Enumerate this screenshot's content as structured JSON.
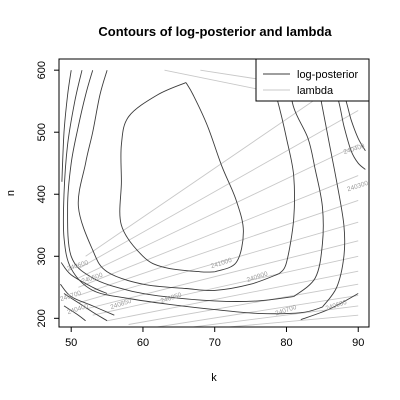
{
  "chart_data": {
    "type": "contour",
    "title": "Contours of log-posterior and lambda",
    "xlabel": "k",
    "ylabel": "n",
    "xlim": [
      48.3,
      91.5
    ],
    "ylim": [
      186,
      618
    ],
    "x_ticks": [
      50,
      60,
      70,
      80,
      90
    ],
    "y_ticks": [
      200,
      300,
      400,
      500,
      600
    ],
    "grid": false,
    "legend_position": "top-right",
    "series": [
      {
        "name": "log-posterior",
        "color": "#3c3c3c",
        "contours": [
          {
            "points": [
              [
                66,
                580
              ],
              [
                62,
                560
              ],
              [
                58,
                525
              ],
              [
                57,
                480
              ],
              [
                57,
                420
              ],
              [
                57,
                350
              ],
              [
                60,
                300
              ],
              [
                63,
                282
              ],
              [
                68,
                275
              ],
              [
                70,
                275
              ]
            ]
          },
          {
            "points": [
              [
                70,
                275
              ],
              [
                73,
                290
              ],
              [
                74,
                340
              ],
              [
                73,
                390
              ],
              [
                71,
                445
              ],
              [
                69,
                510
              ],
              [
                67,
                560
              ],
              [
                66,
                580
              ]
            ]
          },
          {
            "points": [
              [
                55,
                600
              ],
              [
                54,
                560
              ],
              [
                53,
                500
              ],
              [
                52,
                450
              ],
              [
                51,
                380
              ],
              [
                53,
                310
              ],
              [
                55,
                275
              ],
              [
                60,
                255
              ],
              [
                66,
                248
              ],
              [
                70,
                245
              ],
              [
                75,
                255
              ],
              [
                79,
                272
              ]
            ]
          },
          {
            "points": [
              [
                79,
                272
              ],
              [
                80,
                290
              ],
              [
                81,
                360
              ],
              [
                81,
                430
              ],
              [
                80,
                490
              ],
              [
                79,
                540
              ],
              [
                78,
                580
              ],
              [
                77,
                600
              ]
            ]
          },
          {
            "points": [
              [
                53,
                600
              ],
              [
                52,
                560
              ],
              [
                51,
                510
              ],
              [
                50,
                450
              ],
              [
                49.5,
                380
              ],
              [
                50,
                300
              ],
              [
                53,
                265
              ],
              [
                58,
                245
              ],
              [
                63,
                235
              ],
              [
                70,
                228
              ],
              [
                76,
                228
              ],
              [
                81,
                235
              ]
            ]
          },
          {
            "points": [
              [
                81,
                235
              ],
              [
                84,
                265
              ],
              [
                85,
                320
              ],
              [
                85,
                380
              ],
              [
                84,
                440
              ],
              [
                83,
                490
              ],
              [
                81,
                540
              ],
              [
                80,
                600
              ]
            ]
          },
          {
            "points": [
              [
                51.5,
                600
              ],
              [
                50.5,
                550
              ],
              [
                49.5,
                480
              ],
              [
                49,
                400
              ],
              [
                49,
                330
              ],
              [
                50,
                280
              ],
              [
                53,
                245
              ],
              [
                58,
                232
              ],
              [
                64,
                222
              ],
              [
                70,
                214
              ],
              [
                76,
                208
              ],
              [
                82,
                209
              ],
              [
                85,
                218
              ]
            ]
          },
          {
            "points": [
              [
                85,
                218
              ],
              [
                87,
                250
              ],
              [
                88,
                300
              ],
              [
                88,
                350
              ],
              [
                87,
                420
              ],
              [
                86,
                480
              ],
              [
                85,
                540
              ],
              [
                84,
                600
              ]
            ]
          },
          {
            "points": [
              [
                50,
                600
              ],
              [
                49.5,
                560
              ],
              [
                49,
                500
              ],
              [
                48.7,
                420
              ]
            ]
          },
          {
            "points": [
              [
                86,
                600
              ],
              [
                88,
                560
              ],
              [
                89,
                520
              ],
              [
                90,
                490
              ],
              [
                91,
                470
              ]
            ]
          },
          {
            "points": [
              [
                85,
                600
              ],
              [
                87,
                560
              ],
              [
                88,
                510
              ],
              [
                89,
                470
              ],
              [
                90,
                450
              ],
              [
                91,
                440
              ]
            ]
          },
          {
            "points": [
              [
                48.6,
                290
              ],
              [
                50,
                270
              ],
              [
                53,
                250
              ],
              [
                55,
                240
              ]
            ]
          },
          {
            "points": [
              [
                48.5,
                255
              ],
              [
                50,
                235
              ],
              [
                53,
                220
              ],
              [
                56,
                205
              ]
            ]
          },
          {
            "points": [
              [
                49,
                240
              ],
              [
                51,
                225
              ],
              [
                53,
                210
              ],
              [
                55,
                196
              ]
            ]
          },
          {
            "points": [
              [
                49,
                220
              ],
              [
                51,
                205
              ],
              [
                52,
                196
              ]
            ]
          },
          {
            "points": [
              [
                82,
                198
              ],
              [
                86,
                215
              ],
              [
                90,
                240
              ]
            ]
          }
        ],
        "labels": [
          {
            "text": "241000",
            "x": 71,
            "y": 286
          },
          {
            "text": "240900",
            "x": 76,
            "y": 264
          },
          {
            "text": "240850",
            "x": 64,
            "y": 230
          },
          {
            "text": "240850",
            "x": 57,
            "y": 220
          },
          {
            "text": "240700",
            "x": 80,
            "y": 210
          },
          {
            "text": "240600",
            "x": 87,
            "y": 218
          },
          {
            "text": "240600",
            "x": 51,
            "y": 282
          },
          {
            "text": "240500",
            "x": 53,
            "y": 262
          },
          {
            "text": "240700",
            "x": 50,
            "y": 233
          },
          {
            "text": "240400",
            "x": 51,
            "y": 212
          },
          {
            "text": "240400",
            "x": 89.5,
            "y": 470
          },
          {
            "text": "240300",
            "x": 90,
            "y": 410
          }
        ]
      },
      {
        "name": "lambda",
        "color": "#c8c8c8",
        "lines": [
          [
            [
              52,
              300
            ],
            [
              90,
              600
            ]
          ],
          [
            [
              51,
              280
            ],
            [
              90,
              535
            ]
          ],
          [
            [
              51,
              265
            ],
            [
              90,
              480
            ]
          ],
          [
            [
              51,
              250
            ],
            [
              90,
              430
            ]
          ],
          [
            [
              51,
              237
            ],
            [
              90,
              390
            ]
          ],
          [
            [
              51,
              225
            ],
            [
              90,
              355
            ]
          ],
          [
            [
              52,
              215
            ],
            [
              90,
              325
            ]
          ],
          [
            [
              53,
              205
            ],
            [
              90,
              300
            ]
          ],
          [
            [
              55,
              196
            ],
            [
              90,
              276
            ]
          ],
          [
            [
              58,
              190
            ],
            [
              90,
              255
            ]
          ],
          [
            [
              62,
              186
            ],
            [
              90,
              237
            ]
          ],
          [
            [
              67,
              186
            ],
            [
              90,
              220
            ]
          ],
          [
            [
              72,
              186
            ],
            [
              90,
              205
            ]
          ],
          [
            [
              63,
              600
            ],
            [
              80,
              560
            ]
          ],
          [
            [
              68,
              600
            ],
            [
              82,
              575
            ]
          ]
        ]
      }
    ]
  }
}
